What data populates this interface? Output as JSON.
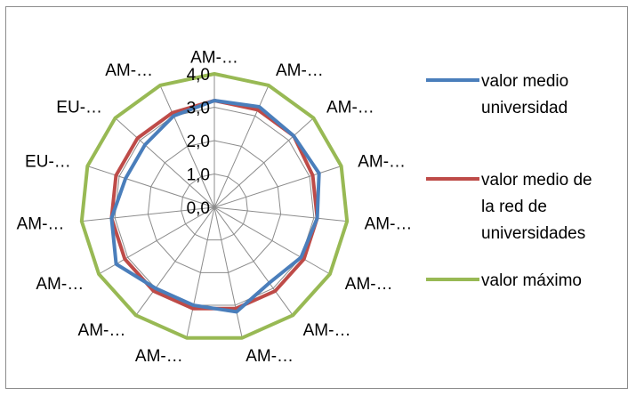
{
  "chart_data": {
    "type": "radar",
    "categories": [
      "AM-…",
      "AM-…",
      "AM-…",
      "AM-…",
      "AM-…",
      "AM-…",
      "AM-…",
      "AM-…",
      "AM-…",
      "AM-…",
      "AM-…",
      "AM-…",
      "EU-…",
      "EU-…",
      "AM-…"
    ],
    "tick_labels": [
      "0,0",
      "1,0",
      "2,0",
      "3,0",
      "4,0"
    ],
    "rlim": [
      0,
      4
    ],
    "grid": true,
    "legend_position": "right",
    "series": [
      {
        "name": "valor medio universidad",
        "color": "#4a7ebb",
        "values": [
          3.2,
          3.3,
          3.2,
          3.3,
          3.1,
          3.0,
          2.8,
          3.2,
          3.0,
          3.0,
          3.4,
          3.1,
          2.8,
          2.8,
          3.0
        ]
      },
      {
        "name": "valor medio de la red de universidades",
        "color": "#be4b48",
        "values": [
          3.2,
          3.2,
          3.2,
          3.1,
          3.1,
          3.1,
          3.1,
          3.1,
          3.1,
          3.1,
          3.1,
          3.1,
          3.1,
          3.1,
          3.1
        ]
      },
      {
        "name": "valor máximo",
        "color": "#98b954",
        "values": [
          4,
          4,
          4,
          4,
          4,
          4,
          4,
          4,
          4,
          4,
          4,
          4,
          4,
          4,
          4
        ]
      }
    ]
  }
}
